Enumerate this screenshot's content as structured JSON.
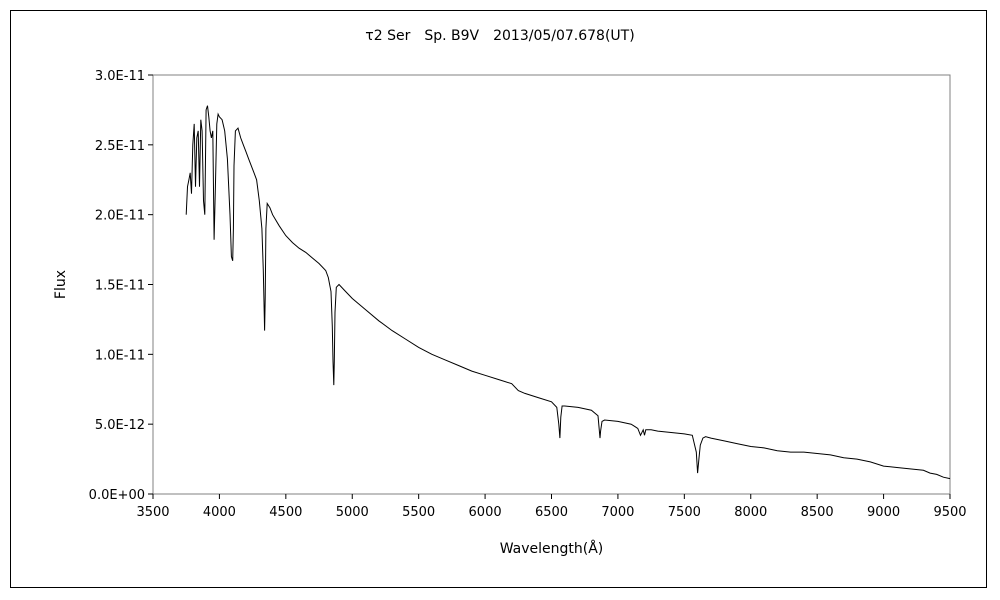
{
  "chart_data": {
    "type": "line",
    "title": "τ2 Ser　Sp. B9V　2013/05/07.678(UT)",
    "xlabel": "Wavelength(Å)",
    "ylabel": "Flux",
    "xlim": [
      3500,
      9500
    ],
    "ylim": [
      0,
      3e-11
    ],
    "grid": false,
    "legend": "none",
    "xticks": [
      3500,
      4000,
      4500,
      5000,
      5500,
      6000,
      6500,
      7000,
      7500,
      8000,
      8500,
      9000,
      9500
    ],
    "xtick_labels": [
      "3500",
      "4000",
      "4500",
      "5000",
      "5500",
      "6000",
      "6500",
      "7000",
      "7500",
      "8000",
      "8500",
      "9000",
      "9500"
    ],
    "yticks": [
      0,
      5e-12,
      1e-11,
      1.5e-11,
      2e-11,
      2.5e-11,
      3e-11
    ],
    "ytick_labels": [
      "0.0E+00",
      "5.0E-12",
      "1.0E-11",
      "1.5E-11",
      "2.0E-11",
      "2.5E-11",
      "3.0E-11"
    ],
    "line_color": "#000000",
    "series": [
      {
        "x": [
          3750,
          3760,
          3770,
          3780,
          3790,
          3800,
          3810,
          3820,
          3830,
          3840,
          3850,
          3860,
          3870,
          3880,
          3890,
          3900,
          3910,
          3920,
          3930,
          3940,
          3950,
          3960,
          3970,
          3980,
          3990,
          4000,
          4020,
          4040,
          4060,
          4080,
          4090,
          4100,
          4105,
          4110,
          4120,
          4140,
          4160,
          4180,
          4200,
          4220,
          4240,
          4260,
          4280,
          4300,
          4320,
          4330,
          4340,
          4345,
          4350,
          4360,
          4380,
          4400,
          4450,
          4500,
          4550,
          4600,
          4650,
          4700,
          4750,
          4800,
          4820,
          4840,
          4850,
          4855,
          4861,
          4865,
          4870,
          4880,
          4900,
          4950,
          5000,
          5100,
          5200,
          5300,
          5400,
          5500,
          5600,
          5700,
          5800,
          5900,
          6000,
          6100,
          6200,
          6250,
          6300,
          6400,
          6500,
          6540,
          6555,
          6563,
          6570,
          6580,
          6600,
          6700,
          6800,
          6850,
          6865,
          6870,
          6880,
          6900,
          7000,
          7100,
          7150,
          7170,
          7190,
          7200,
          7210,
          7250,
          7300,
          7400,
          7500,
          7560,
          7590,
          7600,
          7610,
          7620,
          7640,
          7660,
          7700,
          7800,
          7900,
          8000,
          8100,
          8200,
          8300,
          8400,
          8500,
          8600,
          8700,
          8800,
          8900,
          9000,
          9100,
          9200,
          9300,
          9350,
          9400,
          9450,
          9500
        ],
        "y": [
          2e-11,
          2.2e-11,
          2.25e-11,
          2.3e-11,
          2.15e-11,
          2.5e-11,
          2.65e-11,
          2.2e-11,
          2.55e-11,
          2.6e-11,
          2.2e-11,
          2.68e-11,
          2.6e-11,
          2.1e-11,
          2e-11,
          2.75e-11,
          2.78e-11,
          2.7e-11,
          2.6e-11,
          2.55e-11,
          2.6e-11,
          1.82e-11,
          2.2e-11,
          2.65e-11,
          2.72e-11,
          2.7e-11,
          2.68e-11,
          2.6e-11,
          2.4e-11,
          2e-11,
          1.7e-11,
          1.67e-11,
          1.9e-11,
          2.35e-11,
          2.6e-11,
          2.62e-11,
          2.55e-11,
          2.5e-11,
          2.45e-11,
          2.4e-11,
          2.35e-11,
          2.3e-11,
          2.25e-11,
          2.1e-11,
          1.9e-11,
          1.6e-11,
          1.17e-11,
          1.4e-11,
          1.9e-11,
          2.08e-11,
          2.05e-11,
          2e-11,
          1.92e-11,
          1.85e-11,
          1.8e-11,
          1.76e-11,
          1.73e-11,
          1.69e-11,
          1.65e-11,
          1.6e-11,
          1.55e-11,
          1.45e-11,
          1.2e-11,
          9.5e-12,
          7.8e-12,
          9.5e-12,
          1.3e-11,
          1.48e-11,
          1.5e-11,
          1.45e-11,
          1.4e-11,
          1.32e-11,
          1.24e-11,
          1.17e-11,
          1.11e-11,
          1.05e-11,
          1e-11,
          9.6e-12,
          9.2e-12,
          8.8e-12,
          8.5e-12,
          8.2e-12,
          7.9e-12,
          7.4e-12,
          7.2e-12,
          6.9e-12,
          6.6e-12,
          6.2e-12,
          5e-12,
          4e-12,
          5.5e-12,
          6.3e-12,
          6.3e-12,
          6.2e-12,
          6e-12,
          5.6e-12,
          4e-12,
          4.5e-12,
          5.2e-12,
          5.3e-12,
          5.2e-12,
          5e-12,
          4.7e-12,
          4.2e-12,
          4.6e-12,
          4.2e-12,
          4.6e-12,
          4.6e-12,
          4.5e-12,
          4.4e-12,
          4.3e-12,
          4.2e-12,
          3e-12,
          1.5e-12,
          2.5e-12,
          3.5e-12,
          4e-12,
          4.1e-12,
          4e-12,
          3.8e-12,
          3.6e-12,
          3.4e-12,
          3.3e-12,
          3.1e-12,
          3e-12,
          3e-12,
          2.9e-12,
          2.8e-12,
          2.6e-12,
          2.5e-12,
          2.3e-12,
          2e-12,
          1.9e-12,
          1.8e-12,
          1.7e-12,
          1.5e-12,
          1.4e-12,
          1.2e-12,
          1.1e-12
        ]
      }
    ]
  }
}
